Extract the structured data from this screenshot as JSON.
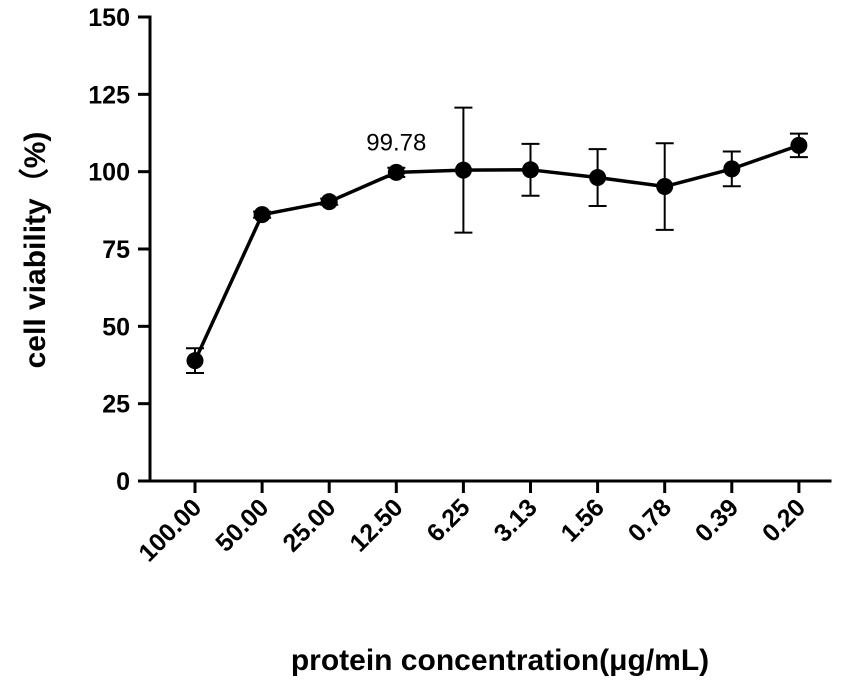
{
  "chart_data": {
    "type": "line",
    "title": "",
    "xlabel": "protein concentration(μg/mL)",
    "ylabel": "cell viability（%)",
    "ylim": [
      0,
      150
    ],
    "yticks": [
      "0",
      "25",
      "50",
      "75",
      "100",
      "125",
      "150"
    ],
    "categories": [
      "100.00",
      "50.00",
      "25.00",
      "12.50",
      "6.25",
      "3.13",
      "1.56",
      "0.78",
      "0.39",
      "0.20"
    ],
    "series": [
      {
        "values": [
          38.9,
          86.1,
          90.3,
          99.78,
          100.5,
          100.6,
          98.1,
          95.2,
          100.9,
          108.5
        ],
        "errors": [
          4.0,
          1.0,
          1.0,
          1.5,
          20.2,
          8.4,
          9.2,
          14.0,
          5.6,
          3.8
        ],
        "color": "#000000"
      }
    ],
    "annotations": [
      {
        "text": "99.78",
        "category": "12.50",
        "value": 99.78
      }
    ],
    "grid": false,
    "legend": "none"
  }
}
